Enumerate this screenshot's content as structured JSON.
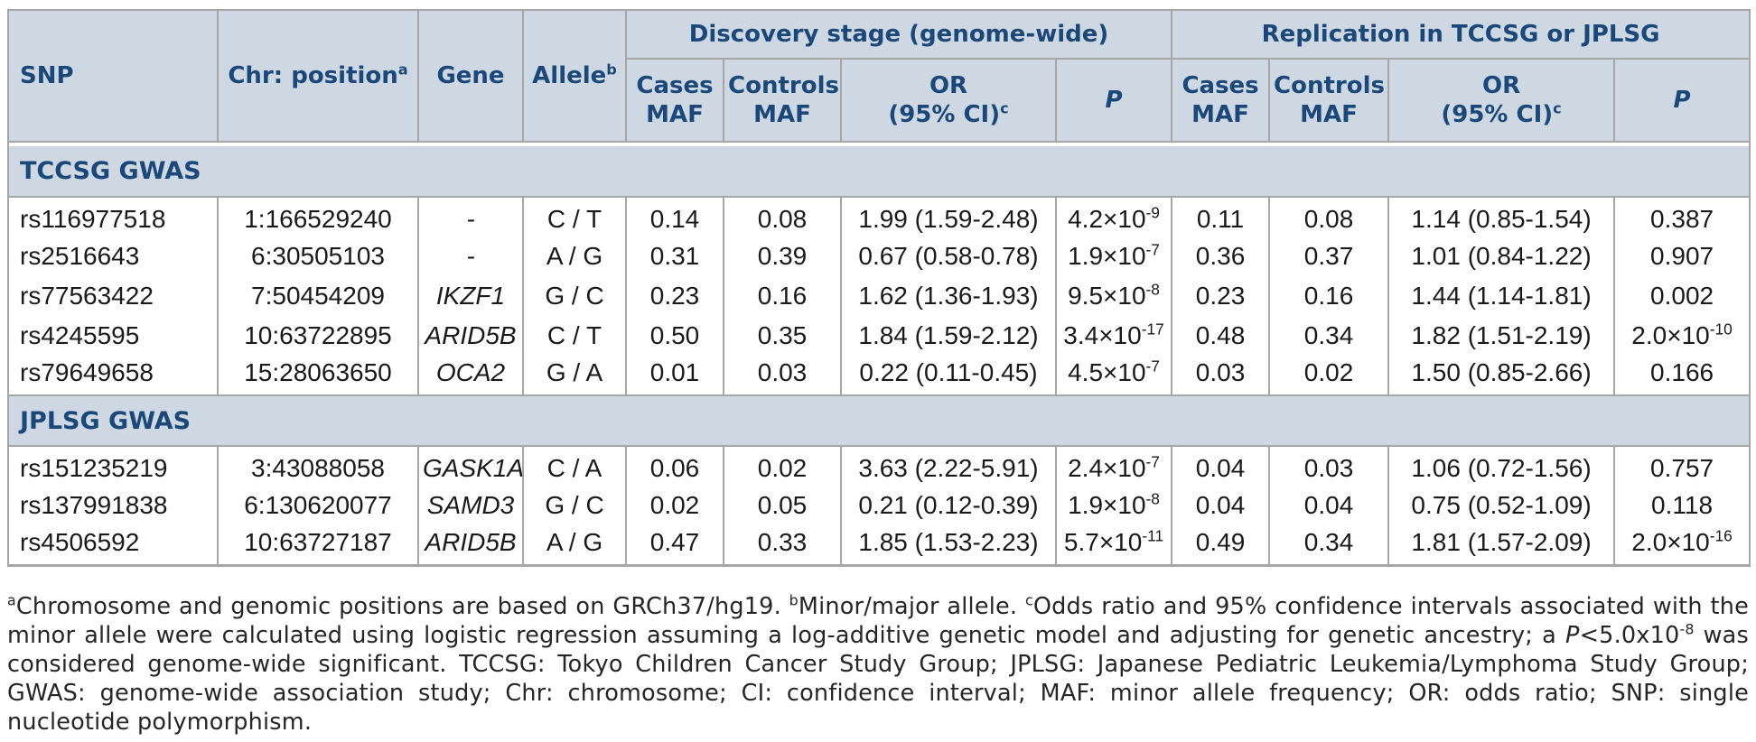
{
  "colors": {
    "header_bg": "#cdd8e2",
    "header_text": "#1c4879",
    "border": "#a6a6a6",
    "body_text": "#1a1a1a"
  },
  "header": {
    "snp": "SNP",
    "chr": "Chr: position^a",
    "gene": "Gene",
    "allele": "Allele^b",
    "discovery": "Discovery stage (genome-wide)",
    "replication": "Replication in TCCSG or JPLSG",
    "cases": "Cases\nMAF",
    "controls": "Controls\nMAF",
    "or": "OR\n(95% CI)^c",
    "p": "P"
  },
  "table": {
    "sections": [
      {
        "title": "TCCSG GWAS",
        "rows": [
          [
            "rs116977518",
            "1:166529240",
            "-",
            "C / T",
            "0.14",
            "0.08",
            "1.99 (1.59-2.48)",
            "4.2×10^-9",
            "0.11",
            "0.08",
            "1.14 (0.85-1.54)",
            "0.387"
          ],
          [
            "rs2516643",
            "6:30505103",
            "-",
            "A / G",
            "0.31",
            "0.39",
            "0.67 (0.58-0.78)",
            "1.9×10^-7",
            "0.36",
            "0.37",
            "1.01 (0.84-1.22)",
            "0.907"
          ],
          [
            "rs77563422",
            "7:50454209",
            "IKZF1",
            "G / C",
            "0.23",
            "0.16",
            "1.62 (1.36-1.93)",
            "9.5×10^-8",
            "0.23",
            "0.16",
            "1.44 (1.14-1.81)",
            "0.002"
          ],
          [
            "rs4245595",
            "10:63722895",
            "ARID5B",
            "C / T",
            "0.50",
            "0.35",
            "1.84 (1.59-2.12)",
            "3.4×10^-17",
            "0.48",
            "0.34",
            "1.82 (1.51-2.19)",
            "2.0×10^-10"
          ],
          [
            "rs79649658",
            "15:28063650",
            "OCA2",
            "G / A",
            "0.01",
            "0.03",
            "0.22 (0.11-0.45)",
            "4.5×10^-7",
            "0.03",
            "0.02",
            "1.50 (0.85-2.66)",
            "0.166"
          ]
        ]
      },
      {
        "title": "JPLSG GWAS",
        "rows": [
          [
            "rs151235219",
            "3:43088058",
            "GASK1A",
            "C / A",
            "0.06",
            "0.02",
            "3.63 (2.22-5.91)",
            "2.4×10^-7",
            "0.04",
            "0.03",
            "1.06 (0.72-1.56)",
            "0.757"
          ],
          [
            "rs137991838",
            "6:130620077",
            "SAMD3",
            "G / C",
            "0.02",
            "0.05",
            "0.21 (0.12-0.39)",
            "1.9×10^-8",
            "0.04",
            "0.04",
            "0.75 (0.52-1.09)",
            "0.118"
          ],
          [
            "rs4506592",
            "10:63727187",
            "ARID5B",
            "A / G",
            "0.47",
            "0.33",
            "1.85 (1.53-2.23)",
            "5.7×10^-11",
            "0.49",
            "0.34",
            "1.81 (1.57-2.09)",
            "2.0×10^-16"
          ]
        ]
      }
    ],
    "cell_names": [
      "snp-cell",
      "position-cell",
      "gene-cell",
      "allele-cell",
      "discovery-cases-maf-cell",
      "discovery-controls-maf-cell",
      "discovery-or-cell",
      "discovery-p-cell",
      "replication-cases-maf-cell",
      "replication-controls-maf-cell",
      "replication-or-cell",
      "replication-p-cell"
    ],
    "cell_classes": [
      "c-snp",
      "c-pos",
      "c-gene",
      "c-allele",
      "c-num",
      "c-num",
      "c-or",
      "c-p",
      "c-num",
      "c-num",
      "c-or",
      "c-p"
    ]
  },
  "footnote_segments": [
    [
      "sup",
      "a"
    ],
    [
      "text",
      "Chromosome and genomic positions are based on GRCh37/hg19. "
    ],
    [
      "sup",
      "b"
    ],
    [
      "text",
      "Minor/major allele. "
    ],
    [
      "sup",
      "c"
    ],
    [
      "text",
      "Odds ratio and 95% confidence intervals associated with the minor allele were calculated using logistic regression assuming a log-additive genetic model and adjusting for genetic ancestry; a "
    ],
    [
      "i",
      "P"
    ],
    [
      "text",
      "<5.0x10"
    ],
    [
      "sup",
      "-8"
    ],
    [
      "text",
      " was considered genome-wide significant. TCCSG: Tokyo Children Cancer Study Group; JPLSG: Japanese Pediatric Leukemia/Lymphoma Study Group; GWAS: genome-wide association study; Chr: chromosome; CI: confidence interval; MAF: minor allele frequency; OR: odds ratio; SNP: single nucleotide polymorphism."
    ]
  ]
}
